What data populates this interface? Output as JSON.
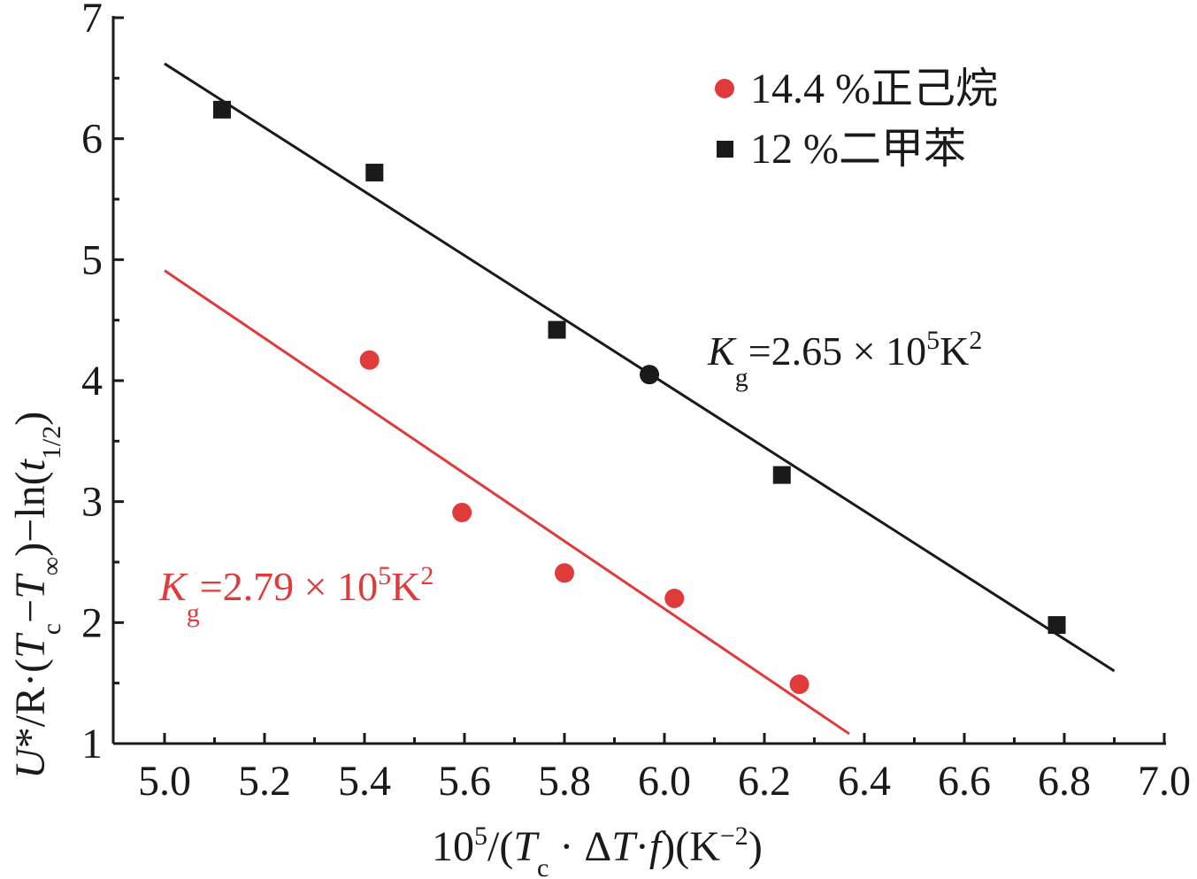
{
  "chart_data": {
    "type": "scatter",
    "xlim": [
      4.9,
      7.0
    ],
    "ylim": [
      1,
      7
    ],
    "xticks": [
      "5.0",
      "5.2",
      "5.4",
      "5.6",
      "5.8",
      "6.0",
      "6.2",
      "6.4",
      "6.6",
      "6.8",
      "7.0"
    ],
    "yticks": [
      "1",
      "2",
      "3",
      "4",
      "5",
      "6",
      "7"
    ],
    "grid": false,
    "legend_position": "top-right",
    "xlabel": {
      "a": "10",
      "b": "5",
      "c": "/(",
      "d": "T",
      "e": "c",
      "f": " · Δ",
      "g": "T",
      "h": "·",
      "i": "f",
      "j": ")(K",
      "k": "−2",
      "l": ")"
    },
    "ylabel": {
      "a": "U",
      "b": "*/R·(",
      "c": "T",
      "d": "c",
      "e": "−",
      "f": "T",
      "g": "∞",
      "h": ")−ln(",
      "i": "t",
      "j": "1/2",
      "k": ")"
    },
    "series": [
      {
        "name": "14.4 %正己烷",
        "marker": "circle",
        "color": "#e03a3a",
        "points": [
          [
            5.41,
            4.17
          ],
          [
            5.595,
            2.91
          ],
          [
            5.8,
            2.41
          ],
          [
            6.02,
            2.2
          ],
          [
            6.27,
            1.49
          ]
        ],
        "fit": [
          [
            5.0,
            4.91
          ],
          [
            6.37,
            1.08
          ]
        ],
        "annotation": {
          "a": "K",
          "b": "g",
          "c": "=2.79 × 10",
          "d": "5",
          "e": "K",
          "f": "2"
        }
      },
      {
        "name": "12 %二甲苯",
        "marker": "square",
        "color": "#1a1a1a",
        "points": [
          [
            5.115,
            6.24
          ],
          [
            5.42,
            5.72
          ],
          [
            5.785,
            4.42
          ],
          [
            6.235,
            3.22
          ],
          [
            6.785,
            1.98
          ]
        ],
        "fit": [
          [
            5.0,
            6.62
          ],
          [
            6.9,
            1.6
          ]
        ],
        "annotation": {
          "a": "K",
          "b": "g",
          "c": "=2.65 × 10",
          "d": "5",
          "e": "K",
          "f": "2"
        }
      }
    ],
    "extra_points": [
      {
        "x": 5.97,
        "y": 4.05,
        "marker": "circle",
        "color": "#1a1a1a"
      }
    ]
  }
}
